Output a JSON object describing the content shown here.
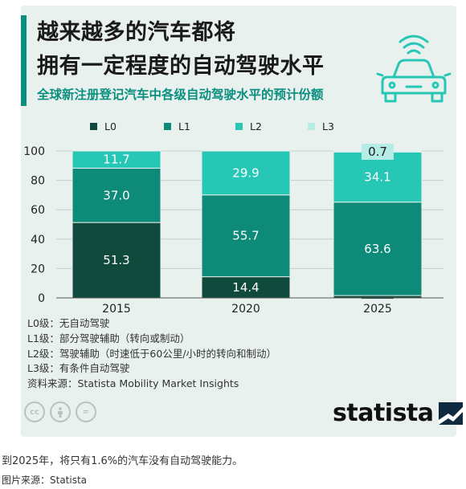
{
  "header": {
    "title_line1": "越来越多的汽车都将",
    "title_line2": "拥有一定程度的自动驾驶水平",
    "subtitle": "全球新注册登记汽车中各级自动驾驶水平的预计份额"
  },
  "chart_data": {
    "type": "bar",
    "stacked": true,
    "title": "越来越多的汽车都将拥有一定程度的自动驾驶水平",
    "subtitle": "全球新注册登记汽车中各级自动驾驶水平的预计份额",
    "categories": [
      "2015",
      "2020",
      "2025"
    ],
    "series": [
      {
        "name": "L0",
        "color": "#0f4a3c",
        "values": [
          51.3,
          14.4,
          1.6
        ]
      },
      {
        "name": "L1",
        "color": "#0d8a78",
        "values": [
          37.0,
          55.7,
          63.6
        ]
      },
      {
        "name": "L2",
        "color": "#27c7b6",
        "values": [
          11.7,
          29.9,
          34.1
        ]
      },
      {
        "name": "L3",
        "color": "#b6ece6",
        "values": [
          0,
          0,
          0.7
        ]
      }
    ],
    "data_labels": [
      [
        "51.3",
        "14.4",
        "1.6"
      ],
      [
        "37.0",
        "55.7",
        "63.6"
      ],
      [
        "11.7",
        "29.9",
        "34.1"
      ],
      [
        "",
        "",
        "0.7"
      ]
    ],
    "ylim": [
      0,
      100
    ],
    "yticks": [
      "0",
      "20",
      "40",
      "60",
      "80",
      "100"
    ],
    "ytick_values": [
      0,
      20,
      40,
      60,
      80,
      100
    ],
    "grid": true,
    "legend_position": "top"
  },
  "notes": [
    "L0级：无自动驾驶",
    "L1级：部分驾驶辅助（转向或制动）",
    "L2级：驾驶辅助（时速低于60公里/小时的转向和制动）",
    "L3级：有条件自动驾驶",
    "资料来源：Statista Mobility Market Insights"
  ],
  "footer": {
    "license_icons": [
      "cc-icon",
      "person-icon",
      "equals-icon"
    ],
    "license_glyphs": [
      "cc",
      "",
      "="
    ],
    "brand": "statista"
  },
  "caption": "到2025年，将只有1.6%的汽车没有自动驾驶能力。",
  "image_source": "图片来源：Statista"
}
